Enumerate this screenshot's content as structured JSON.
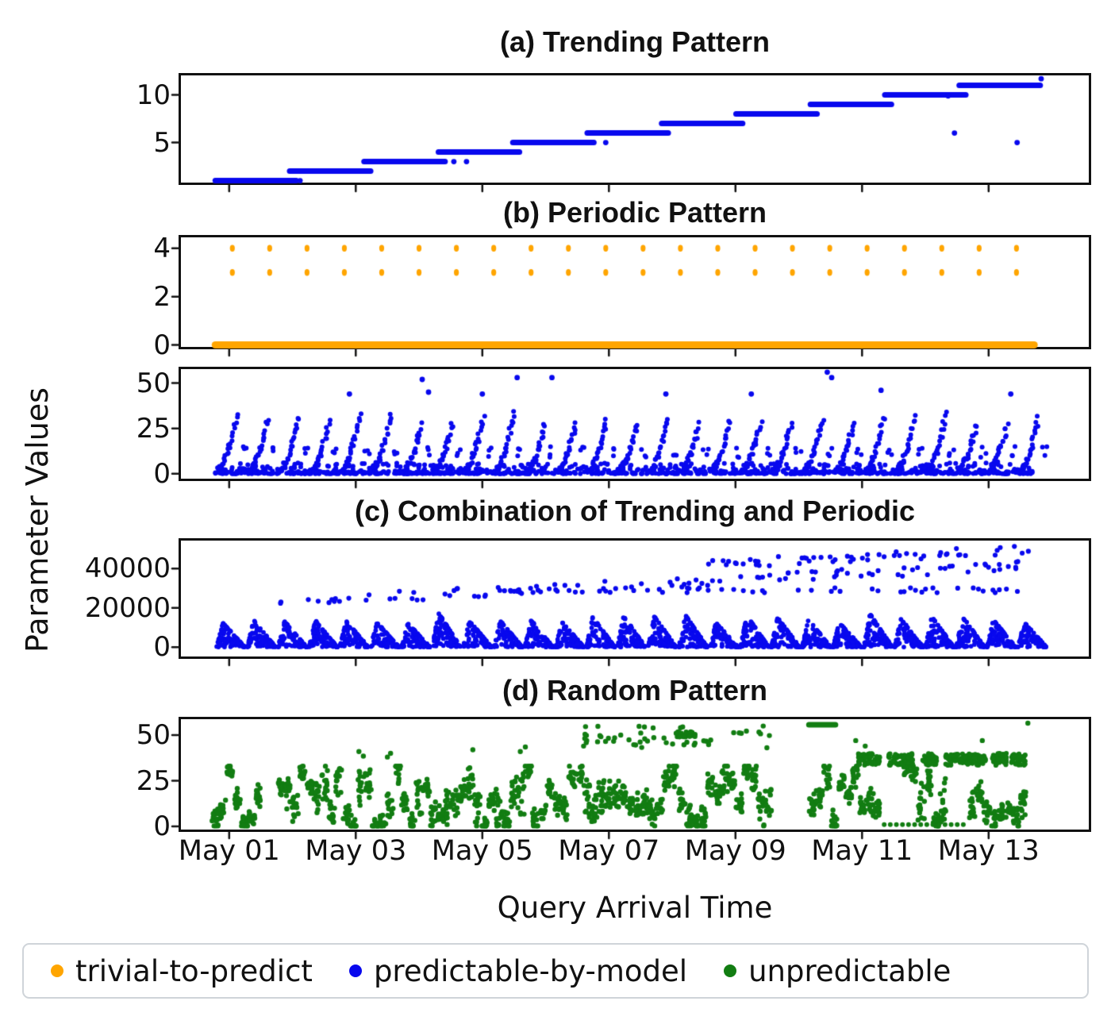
{
  "figure": {
    "ylabel": "Parameter Values",
    "xlabel": "Query Arrival Time",
    "xtick_values": [
      1,
      3,
      5,
      7,
      9,
      11,
      13
    ],
    "xtick_labels": [
      "May 01",
      "May 03",
      "May 05",
      "May 07",
      "May 09",
      "May 11",
      "May 13"
    ]
  },
  "legend": {
    "items": [
      {
        "label": "trivial-to-predict",
        "color": "#ffa500"
      },
      {
        "label": "predictable-by-model",
        "color": "#0808ee"
      },
      {
        "label": "unpredictable",
        "color": "#127d12"
      }
    ]
  },
  "chart_data": [
    {
      "id": "a",
      "type": "scatter",
      "title": "(a) Trending Pattern",
      "series_name": "predictable-by-model",
      "color": "#0808ee",
      "xlim": [
        0.2,
        14.62
      ],
      "ylim": [
        0.55,
        12.3
      ],
      "yticks": [
        {
          "v": 5,
          "label": "5"
        },
        {
          "v": 10,
          "label": "10"
        }
      ],
      "steps": {
        "count": 11,
        "x_start": 0.78,
        "x_step": 1.1755,
        "width": 1.28,
        "y_start": 1,
        "y_step": 1,
        "x_max": 13.9
      },
      "outliers": [
        [
          2.12,
          1
        ],
        [
          4.55,
          3
        ],
        [
          4.75,
          3
        ],
        [
          6.95,
          5
        ],
        [
          12.36,
          9.9
        ],
        [
          12.46,
          6
        ],
        [
          13.45,
          5
        ],
        [
          13.83,
          11.7
        ]
      ]
    },
    {
      "id": "b1",
      "type": "scatter",
      "title": "(b) Periodic Pattern",
      "series_name": "trivial-to-predict",
      "color": "#ffa500",
      "xlim": [
        0.2,
        14.62
      ],
      "ylim": [
        -0.18,
        4.55
      ],
      "yticks": [
        {
          "v": 0,
          "label": "0"
        },
        {
          "v": 2,
          "label": "2"
        },
        {
          "v": 4,
          "label": "4"
        }
      ],
      "baseline": {
        "y": 0,
        "x0": 0.78,
        "x1": 13.72
      },
      "dot_rows": [
        {
          "y": 4,
          "x0": 1.05,
          "count": 22,
          "dx": 0.59
        },
        {
          "y": 3,
          "x0": 1.05,
          "count": 22,
          "dx": 0.59
        }
      ]
    },
    {
      "id": "b2",
      "type": "scatter",
      "title": "",
      "series_name": "predictable-by-model",
      "color": "#0808ee",
      "xlim": [
        0.2,
        14.62
      ],
      "ylim": [
        -4,
        59
      ],
      "yticks": [
        {
          "v": 0,
          "label": "0"
        },
        {
          "v": 25,
          "label": "25"
        },
        {
          "v": 50,
          "label": "50"
        }
      ],
      "spikes": {
        "x0": 0.82,
        "period": 0.487,
        "count": 27,
        "rise": 0.3,
        "peak_min": 25,
        "peak_max": 33,
        "points": 26
      },
      "echo_dots": {
        "per_spike": 3,
        "offset": 0.35,
        "spread": 0.1,
        "y_min": 9,
        "y_max": 15
      },
      "base_band": {
        "x0": 0.78,
        "x1": 13.7,
        "count": 700,
        "y_max": 6,
        "dense_count": 300,
        "dense_y_max": 1.4
      },
      "outliers": [
        [
          2.9,
          44
        ],
        [
          4.05,
          52
        ],
        [
          4.15,
          45
        ],
        [
          5.0,
          44
        ],
        [
          5.55,
          53
        ],
        [
          6.1,
          53
        ],
        [
          7.9,
          44
        ],
        [
          9.25,
          44
        ],
        [
          10.45,
          56
        ],
        [
          10.52,
          53
        ],
        [
          11.3,
          46
        ],
        [
          13.35,
          44
        ]
      ]
    },
    {
      "id": "c",
      "type": "scatter",
      "title": "(c) Combination of Trending and Periodic",
      "series_name": "predictable-by-model",
      "color": "#0808ee",
      "xlim": [
        0.2,
        14.62
      ],
      "ylim": [
        -6000,
        55500
      ],
      "yticks": [
        {
          "v": 0,
          "label": "0"
        },
        {
          "v": 20000,
          "label": "20000"
        },
        {
          "v": 40000,
          "label": "40000"
        }
      ],
      "bursts": {
        "x0": 0.8,
        "period": 0.487,
        "count": 27,
        "width": 0.45,
        "h_min": 12500,
        "h_max": 18000,
        "points": 90
      },
      "trend_scatter": [
        {
          "x0": 1.8,
          "x1": 13.72,
          "count": 100,
          "y_base": 20000,
          "slope": 1600,
          "spread": 2600
        },
        {
          "x0": 4.5,
          "x1": 13.72,
          "count": 60,
          "y_base": 29000,
          "slope": 0,
          "spread": 1400
        },
        {
          "x0": 8.5,
          "x1": 13.72,
          "count": 55,
          "y_base": 30500,
          "slope": 1400,
          "spread": 2400
        }
      ],
      "y_cap": 51500
    },
    {
      "id": "d",
      "type": "scatter",
      "title": "(d) Random Pattern",
      "series_name": "unpredictable",
      "color": "#127d12",
      "xlim": [
        0.2,
        14.62
      ],
      "ylim": [
        -3,
        60
      ],
      "yticks": [
        {
          "v": 0,
          "label": "0"
        },
        {
          "v": 25,
          "label": "25"
        },
        {
          "v": 50,
          "label": "50"
        }
      ],
      "strands": {
        "x0": 0.78,
        "x1": 13.65,
        "spacing": 0.115,
        "points": 15,
        "y_max": 33,
        "walk_step": 9,
        "gaps": [
          [
            1.52,
            1.78
          ],
          [
            9.6,
            10.12
          ],
          [
            11.3,
            11.62
          ],
          [
            12.38,
            12.72
          ]
        ]
      },
      "early_high": [
        [
          3.05,
          41
        ],
        [
          3.12,
          38.5
        ],
        [
          3.5,
          38
        ],
        [
          3.55,
          40
        ],
        [
          4.85,
          42
        ],
        [
          5.6,
          41
        ],
        [
          5.68,
          43.5
        ],
        [
          6.6,
          44
        ],
        [
          6.65,
          47
        ]
      ],
      "high_cluster": {
        "x0": 6.55,
        "x1": 9.55,
        "count": 50,
        "y_min": 43,
        "y_max": 55
      },
      "high_block": {
        "x0": 8.05,
        "x1": 8.38,
        "y0": 49,
        "y1": 52,
        "count": 24
      },
      "hbar": {
        "y": 55.7,
        "x0": 10.16,
        "x1": 10.58
      },
      "late_blocks": {
        "rects": [
          [
            10.92,
            11.28
          ],
          [
            11.42,
            11.8
          ],
          [
            11.95,
            12.18
          ],
          [
            12.32,
            12.95
          ],
          [
            13.05,
            13.28
          ],
          [
            13.35,
            13.58
          ]
        ],
        "y0": 33.5,
        "y1": 40,
        "per_unit": 160
      },
      "dot_row": {
        "y": 1,
        "x0": 11.35,
        "x1": 12.6,
        "count": 14
      },
      "extra": [
        [
          13.62,
          56.5
        ],
        [
          12.9,
          47
        ],
        [
          11.05,
          44
        ],
        [
          10.9,
          47
        ]
      ]
    }
  ]
}
